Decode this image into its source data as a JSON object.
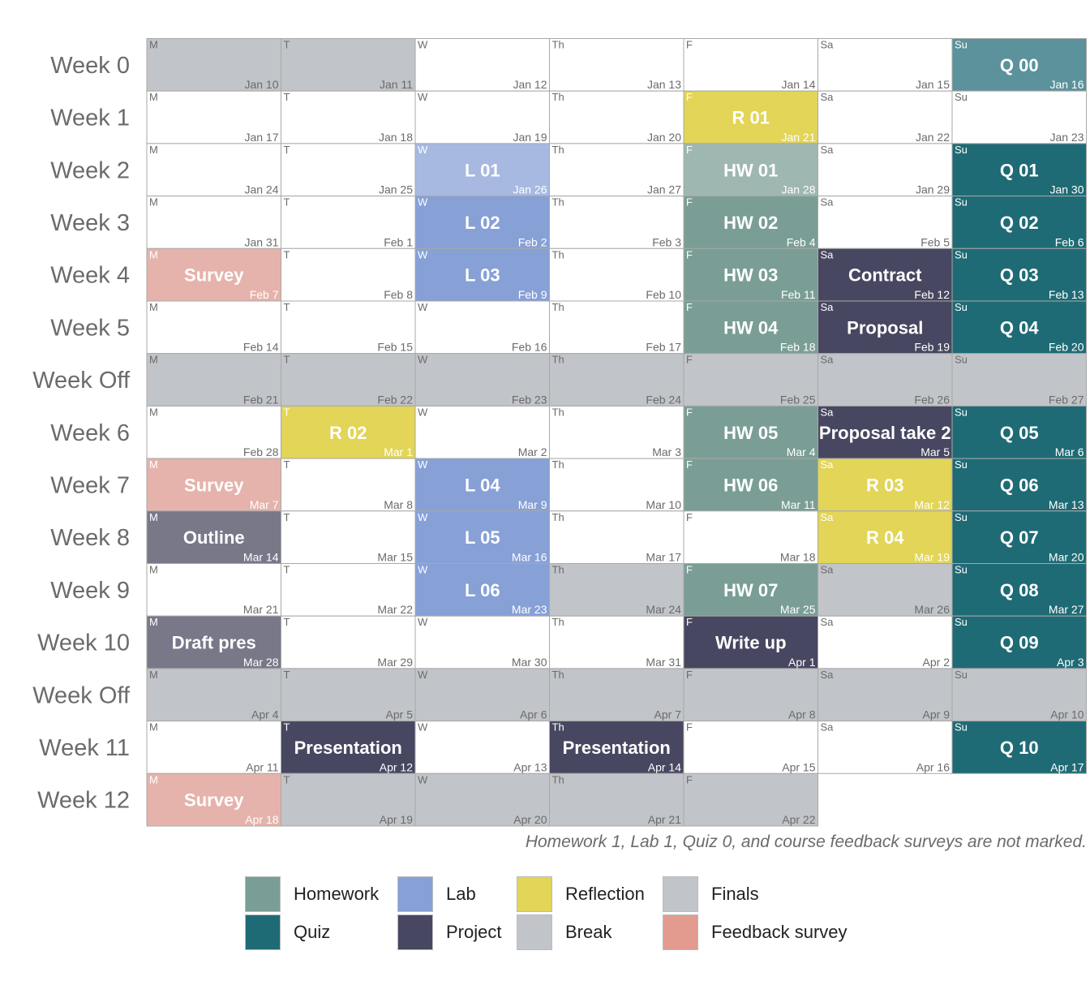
{
  "colors": {
    "homework": "#7a9e95",
    "hw_light": "#9fb7b1",
    "quiz": "#1f6b75",
    "quiz_light": "#5b929b",
    "lab": "#87a0d6",
    "lab_light": "#a7b9e1",
    "project": "#474761",
    "project_light": "#787889",
    "reflection": "#e2d557",
    "break": "#c1c4c8",
    "finals": "#c1c4c8",
    "survey": "#e5b3ab",
    "survey_legend": "#e39a8f",
    "none": "#ffffff"
  },
  "chart_data": {
    "type": "heatmap",
    "row_labels": [
      "Week 0",
      "Week 1",
      "Week 2",
      "Week 3",
      "Week 4",
      "Week 5",
      "Week Off",
      "Week 6",
      "Week 7",
      "Week 8",
      "Week 9",
      "Week 10",
      "Week Off",
      "Week 11",
      "Week 12"
    ],
    "day_labels": [
      "M",
      "T",
      "W",
      "Th",
      "F",
      "Sa",
      "Su"
    ],
    "cells": [
      [
        {
          "d": "Jan 10",
          "t": "",
          "c": "break"
        },
        {
          "d": "Jan 11",
          "t": "",
          "c": "break"
        },
        {
          "d": "Jan 12",
          "t": "",
          "c": "none"
        },
        {
          "d": "Jan 13",
          "t": "",
          "c": "none"
        },
        {
          "d": "Jan 14",
          "t": "",
          "c": "none"
        },
        {
          "d": "Jan 15",
          "t": "",
          "c": "none"
        },
        {
          "d": "Jan 16",
          "t": "Q 00",
          "c": "quiz_light"
        }
      ],
      [
        {
          "d": "Jan 17",
          "t": "",
          "c": "none"
        },
        {
          "d": "Jan 18",
          "t": "",
          "c": "none"
        },
        {
          "d": "Jan 19",
          "t": "",
          "c": "none"
        },
        {
          "d": "Jan 20",
          "t": "",
          "c": "none"
        },
        {
          "d": "Jan 21",
          "t": "R 01",
          "c": "reflection"
        },
        {
          "d": "Jan 22",
          "t": "",
          "c": "none"
        },
        {
          "d": "Jan 23",
          "t": "",
          "c": "none"
        }
      ],
      [
        {
          "d": "Jan 24",
          "t": "",
          "c": "none"
        },
        {
          "d": "Jan 25",
          "t": "",
          "c": "none"
        },
        {
          "d": "Jan 26",
          "t": "L 01",
          "c": "lab_light"
        },
        {
          "d": "Jan 27",
          "t": "",
          "c": "none"
        },
        {
          "d": "Jan 28",
          "t": "HW 01",
          "c": "hw_light"
        },
        {
          "d": "Jan 29",
          "t": "",
          "c": "none"
        },
        {
          "d": "Jan 30",
          "t": "Q 01",
          "c": "quiz"
        }
      ],
      [
        {
          "d": "Jan 31",
          "t": "",
          "c": "none"
        },
        {
          "d": "Feb 1",
          "t": "",
          "c": "none"
        },
        {
          "d": "Feb 2",
          "t": "L 02",
          "c": "lab"
        },
        {
          "d": "Feb 3",
          "t": "",
          "c": "none"
        },
        {
          "d": "Feb 4",
          "t": "HW 02",
          "c": "homework"
        },
        {
          "d": "Feb 5",
          "t": "",
          "c": "none"
        },
        {
          "d": "Feb 6",
          "t": "Q 02",
          "c": "quiz"
        }
      ],
      [
        {
          "d": "Feb 7",
          "t": "Survey",
          "c": "survey"
        },
        {
          "d": "Feb 8",
          "t": "",
          "c": "none"
        },
        {
          "d": "Feb 9",
          "t": "L 03",
          "c": "lab"
        },
        {
          "d": "Feb 10",
          "t": "",
          "c": "none"
        },
        {
          "d": "Feb 11",
          "t": "HW 03",
          "c": "homework"
        },
        {
          "d": "Feb 12",
          "t": "Contract",
          "c": "project"
        },
        {
          "d": "Feb 13",
          "t": "Q 03",
          "c": "quiz"
        }
      ],
      [
        {
          "d": "Feb 14",
          "t": "",
          "c": "none"
        },
        {
          "d": "Feb 15",
          "t": "",
          "c": "none"
        },
        {
          "d": "Feb 16",
          "t": "",
          "c": "none"
        },
        {
          "d": "Feb 17",
          "t": "",
          "c": "none"
        },
        {
          "d": "Feb 18",
          "t": "HW 04",
          "c": "homework"
        },
        {
          "d": "Feb 19",
          "t": "Proposal",
          "c": "project"
        },
        {
          "d": "Feb 20",
          "t": "Q 04",
          "c": "quiz"
        }
      ],
      [
        {
          "d": "Feb 21",
          "t": "",
          "c": "break"
        },
        {
          "d": "Feb 22",
          "t": "",
          "c": "break"
        },
        {
          "d": "Feb 23",
          "t": "",
          "c": "break"
        },
        {
          "d": "Feb 24",
          "t": "",
          "c": "break"
        },
        {
          "d": "Feb 25",
          "t": "",
          "c": "break"
        },
        {
          "d": "Feb 26",
          "t": "",
          "c": "break"
        },
        {
          "d": "Feb 27",
          "t": "",
          "c": "break"
        }
      ],
      [
        {
          "d": "Feb 28",
          "t": "",
          "c": "none"
        },
        {
          "d": "Mar 1",
          "t": "R 02",
          "c": "reflection"
        },
        {
          "d": "Mar 2",
          "t": "",
          "c": "none"
        },
        {
          "d": "Mar 3",
          "t": "",
          "c": "none"
        },
        {
          "d": "Mar 4",
          "t": "HW 05",
          "c": "homework"
        },
        {
          "d": "Mar 5",
          "t": "Proposal take 2",
          "c": "project"
        },
        {
          "d": "Mar 6",
          "t": "Q 05",
          "c": "quiz"
        }
      ],
      [
        {
          "d": "Mar 7",
          "t": "Survey",
          "c": "survey"
        },
        {
          "d": "Mar 8",
          "t": "",
          "c": "none"
        },
        {
          "d": "Mar 9",
          "t": "L 04",
          "c": "lab"
        },
        {
          "d": "Mar 10",
          "t": "",
          "c": "none"
        },
        {
          "d": "Mar 11",
          "t": "HW 06",
          "c": "homework"
        },
        {
          "d": "Mar 12",
          "t": "R 03",
          "c": "reflection"
        },
        {
          "d": "Mar 13",
          "t": "Q 06",
          "c": "quiz"
        }
      ],
      [
        {
          "d": "Mar 14",
          "t": "Outline",
          "c": "project_light"
        },
        {
          "d": "Mar 15",
          "t": "",
          "c": "none"
        },
        {
          "d": "Mar 16",
          "t": "L 05",
          "c": "lab"
        },
        {
          "d": "Mar 17",
          "t": "",
          "c": "none"
        },
        {
          "d": "Mar 18",
          "t": "",
          "c": "none"
        },
        {
          "d": "Mar 19",
          "t": "R 04",
          "c": "reflection"
        },
        {
          "d": "Mar 20",
          "t": "Q 07",
          "c": "quiz"
        }
      ],
      [
        {
          "d": "Mar 21",
          "t": "",
          "c": "none"
        },
        {
          "d": "Mar 22",
          "t": "",
          "c": "none"
        },
        {
          "d": "Mar 23",
          "t": "L 06",
          "c": "lab"
        },
        {
          "d": "Mar 24",
          "t": "",
          "c": "break"
        },
        {
          "d": "Mar 25",
          "t": "HW 07",
          "c": "homework"
        },
        {
          "d": "Mar 26",
          "t": "",
          "c": "break"
        },
        {
          "d": "Mar 27",
          "t": "Q 08",
          "c": "quiz"
        }
      ],
      [
        {
          "d": "Mar 28",
          "t": "Draft pres",
          "c": "project_light"
        },
        {
          "d": "Mar 29",
          "t": "",
          "c": "none"
        },
        {
          "d": "Mar 30",
          "t": "",
          "c": "none"
        },
        {
          "d": "Mar 31",
          "t": "",
          "c": "none"
        },
        {
          "d": "Apr 1",
          "t": "Write up",
          "c": "project"
        },
        {
          "d": "Apr 2",
          "t": "",
          "c": "none"
        },
        {
          "d": "Apr 3",
          "t": "Q 09",
          "c": "quiz"
        }
      ],
      [
        {
          "d": "Apr 4",
          "t": "",
          "c": "break"
        },
        {
          "d": "Apr 5",
          "t": "",
          "c": "break"
        },
        {
          "d": "Apr 6",
          "t": "",
          "c": "break"
        },
        {
          "d": "Apr 7",
          "t": "",
          "c": "break"
        },
        {
          "d": "Apr 8",
          "t": "",
          "c": "break"
        },
        {
          "d": "Apr 9",
          "t": "",
          "c": "break"
        },
        {
          "d": "Apr 10",
          "t": "",
          "c": "break"
        }
      ],
      [
        {
          "d": "Apr 11",
          "t": "",
          "c": "none"
        },
        {
          "d": "Apr 12",
          "t": "Presentation",
          "c": "project"
        },
        {
          "d": "Apr 13",
          "t": "",
          "c": "none"
        },
        {
          "d": "Apr 14",
          "t": "Presentation",
          "c": "project"
        },
        {
          "d": "Apr 15",
          "t": "",
          "c": "none"
        },
        {
          "d": "Apr 16",
          "t": "",
          "c": "none"
        },
        {
          "d": "Apr 17",
          "t": "Q 10",
          "c": "quiz"
        }
      ],
      [
        {
          "d": "Apr 18",
          "t": "Survey",
          "c": "survey"
        },
        {
          "d": "Apr 19",
          "t": "",
          "c": "finals"
        },
        {
          "d": "Apr 20",
          "t": "",
          "c": "finals"
        },
        {
          "d": "Apr 21",
          "t": "",
          "c": "finals"
        },
        {
          "d": "Apr 22",
          "t": "",
          "c": "finals"
        }
      ]
    ]
  },
  "note": "Homework 1, Lab 1, Quiz 0, and course feedback surveys are not marked.",
  "legend": [
    {
      "label": "Homework",
      "c": "homework"
    },
    {
      "label": "Quiz",
      "c": "quiz"
    },
    {
      "label": "Lab",
      "c": "lab"
    },
    {
      "label": "Project",
      "c": "project"
    },
    {
      "label": "Reflection",
      "c": "reflection"
    },
    {
      "label": "Break",
      "c": "break"
    },
    {
      "label": "Finals",
      "c": "finals"
    },
    {
      "label": "Feedback survey",
      "c": "survey_legend"
    }
  ]
}
